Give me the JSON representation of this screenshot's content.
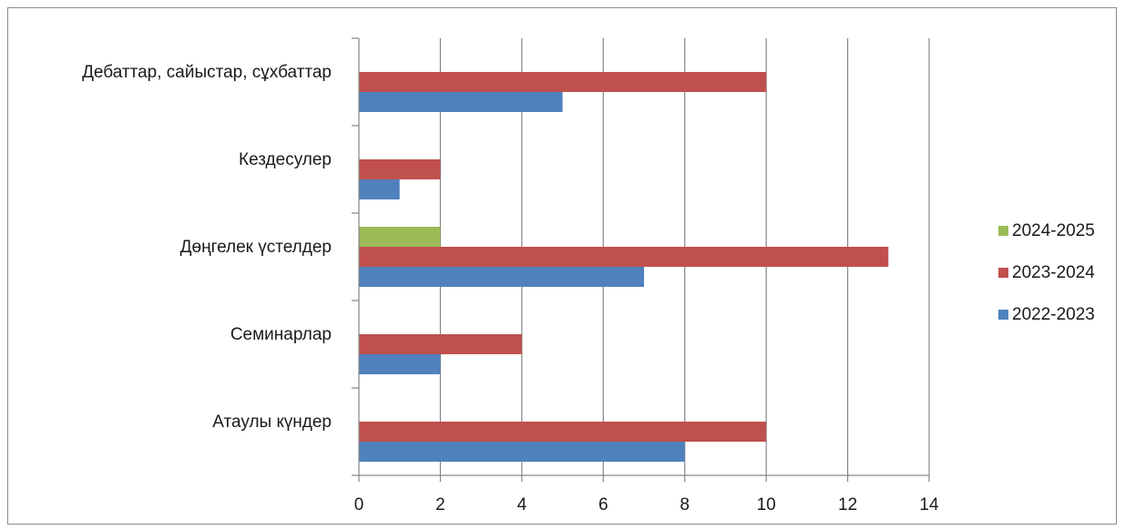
{
  "chart_data": {
    "type": "bar",
    "orientation": "horizontal",
    "title": "",
    "xlabel": "",
    "ylabel": "",
    "xlim": [
      0,
      14
    ],
    "x_ticks": [
      0,
      2,
      4,
      6,
      8,
      10,
      12,
      14
    ],
    "grid": "vertical",
    "legend_position": "right",
    "categories": [
      "Дебаттар, сайыстар, сұхбаттар",
      "Кездесулер",
      "Дөңгелек үстелдер",
      "Семинарлар",
      "Атаулы күндер"
    ],
    "series": [
      {
        "name": "2022-2023",
        "color": "#4f81bd",
        "values": [
          5,
          1,
          7,
          2,
          8
        ]
      },
      {
        "name": "2023-2024",
        "color": "#c0504d",
        "values": [
          10,
          2,
          13,
          4,
          10
        ]
      },
      {
        "name": "2024-2025",
        "color": "#9bbb59",
        "values": [
          null,
          null,
          2,
          null,
          null
        ]
      }
    ],
    "legend": [
      "2024-2025",
      "2023-2024",
      "2022-2023"
    ]
  }
}
